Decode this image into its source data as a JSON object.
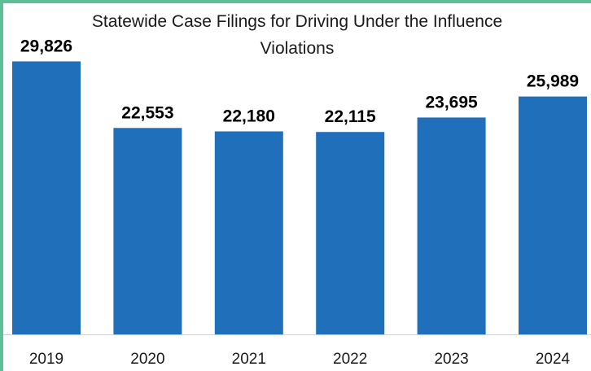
{
  "chart_data": {
    "type": "bar",
    "title_lines": [
      "Statewide Case Filings for Driving Under the Influence",
      "Violations"
    ],
    "categories": [
      "2019",
      "2020",
      "2021",
      "2022",
      "2023",
      "2024"
    ],
    "values": [
      29826,
      22553,
      22180,
      22115,
      23695,
      25989
    ],
    "data_labels": [
      "29,826",
      "22,553",
      "22,180",
      "22,115",
      "23,695",
      "25,989"
    ],
    "ylim": [
      0,
      40000
    ],
    "grid": false,
    "legend": "none",
    "colors": {
      "bar": "#1f6fbb",
      "border": "#5cbf96",
      "axis": "#d0d0d0"
    }
  }
}
